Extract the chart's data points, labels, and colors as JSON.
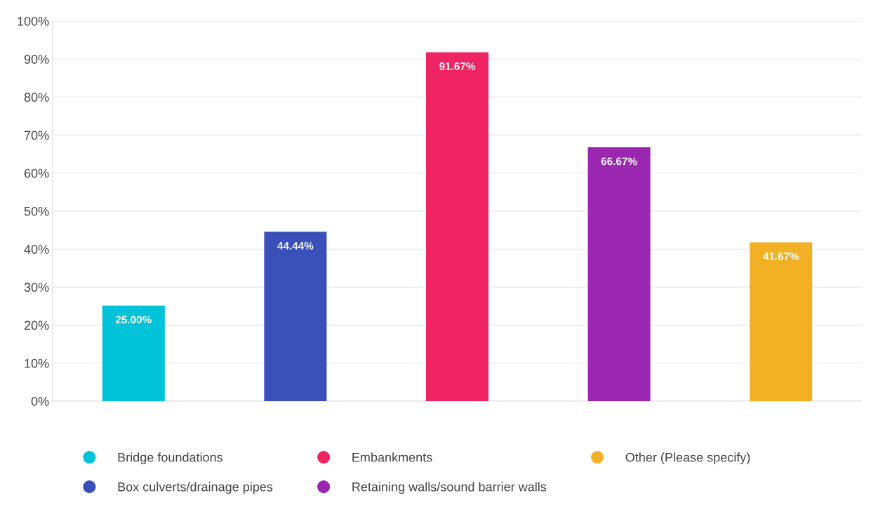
{
  "chart_data": {
    "type": "bar",
    "categories": [
      null,
      null,
      null,
      null,
      null
    ],
    "series": [
      {
        "name": "Bridge foundations",
        "color": "#00c2d9",
        "values": [
          25.0,
          null,
          null,
          null,
          null
        ],
        "value_labels": [
          "25.00%",
          null,
          null,
          null,
          null
        ]
      },
      {
        "name": "Box culverts/drainage pipes",
        "color": "#3a4fb8",
        "values": [
          null,
          44.44,
          null,
          null,
          null
        ],
        "value_labels": [
          null,
          "44.44%",
          null,
          null,
          null
        ]
      },
      {
        "name": "Embankments",
        "color": "#f02462",
        "values": [
          null,
          null,
          91.67,
          null,
          null
        ],
        "value_labels": [
          null,
          null,
          "91.67%",
          null,
          null
        ]
      },
      {
        "name": "Retaining walls/sound barrier walls",
        "color": "#9b27b0",
        "values": [
          null,
          null,
          null,
          66.67,
          null
        ],
        "value_labels": [
          null,
          null,
          null,
          "66.67%",
          null
        ]
      },
      {
        "name": "Other (Please specify)",
        "color": "#f2b024",
        "values": [
          null,
          null,
          null,
          null,
          41.67
        ],
        "value_labels": [
          null,
          null,
          null,
          null,
          "41.67%"
        ]
      }
    ],
    "ylim": [
      0,
      100
    ],
    "yticks": [
      {
        "value": 0,
        "label": "0%"
      },
      {
        "value": 10,
        "label": "10%"
      },
      {
        "value": 20,
        "label": "20%"
      },
      {
        "value": 30,
        "label": "30%"
      },
      {
        "value": 40,
        "label": "40%"
      },
      {
        "value": 50,
        "label": "50%"
      },
      {
        "value": 60,
        "label": "60%"
      },
      {
        "value": 70,
        "label": "70%"
      },
      {
        "value": 80,
        "label": "80%"
      },
      {
        "value": 90,
        "label": "90%"
      },
      {
        "value": 100,
        "label": "100%"
      }
    ],
    "grid": "y",
    "legend": "bottom",
    "marker": "circle"
  }
}
